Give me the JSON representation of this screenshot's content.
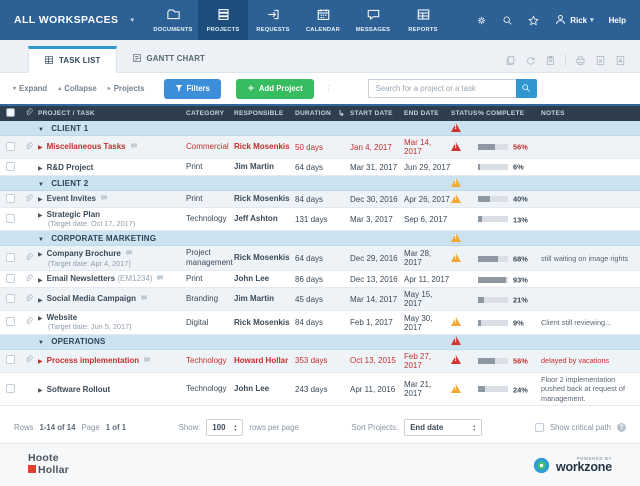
{
  "colors": {
    "navbar": "#2d6195",
    "navbar_active": "#1d4d7c",
    "accent_blue": "#2f96d0",
    "button_blue": "#3d8ed9",
    "button_green": "#36bd5f",
    "table_header": "#2e3e4e",
    "group_row": "#cbe2f1",
    "alert_red": "#cf3430",
    "alert_orange": "#f2a831",
    "overdue_text": "#c42f2a"
  },
  "navbar": {
    "workspace_label": "ALL WORKSPACES",
    "items": [
      {
        "label": "DOCUMENTS",
        "icon": "folder-icon"
      },
      {
        "label": "PROJECTS",
        "icon": "projects-icon"
      },
      {
        "label": "REQUESTS",
        "icon": "requests-icon"
      },
      {
        "label": "CALENDAR",
        "icon": "calendar-icon"
      },
      {
        "label": "MESSAGES",
        "icon": "messages-icon"
      },
      {
        "label": "REPORTS",
        "icon": "reports-icon"
      }
    ],
    "active_item": "PROJECTS",
    "user_name": "Rick",
    "help_label": "Help"
  },
  "tabbar": {
    "tabs": [
      {
        "label": "TASK LIST"
      },
      {
        "label": "GANTT CHART"
      }
    ],
    "active_tab": "TASK LIST",
    "tool_icons": [
      "copy-icon",
      "recycle-icon",
      "clipboard-icon",
      "print-icon",
      "excel-export-icon",
      "pdf-export-icon"
    ]
  },
  "toolbar": {
    "expand_label": "Expand",
    "collapse_label": "Collapse",
    "projects_label": "Projects",
    "filters_label": "Filters",
    "add_project_label": "Add Project",
    "search_placeholder": "Search for a project or a task"
  },
  "table": {
    "columns": [
      "PROJECT / TASK",
      "CATEGORY",
      "RESPONSIBLE",
      "DURATION",
      "START DATE",
      "END DATE",
      "STATUS",
      "% COMPLETE",
      "NOTES"
    ],
    "groups": [
      {
        "name": "CLIENT 1",
        "status": "red",
        "tasks": [
          {
            "name": "Miscellaneous Tasks",
            "code": "",
            "sub": "",
            "clip": true,
            "comment": true,
            "overdue": true,
            "category": "Commercial",
            "responsible": "Rick Mosenkis",
            "duration": "50 days",
            "start": "Jan 4, 2017",
            "end": "Mar 14, 2017",
            "status": "red",
            "complete": 56,
            "notes": "",
            "notes_red": false
          },
          {
            "name": "R&D Project",
            "code": "",
            "sub": "",
            "clip": false,
            "comment": false,
            "overdue": false,
            "category": "Print",
            "responsible": "Jim Martin",
            "duration": "64 days",
            "start": "Mar 31, 2017",
            "end": "Jun 29, 2017",
            "status": "none",
            "complete": 6,
            "notes": "",
            "notes_red": false
          }
        ]
      },
      {
        "name": "CLIENT 2",
        "status": "orange",
        "tasks": [
          {
            "name": "Event Invites",
            "code": "",
            "sub": "",
            "clip": true,
            "comment": true,
            "overdue": false,
            "category": "Print",
            "responsible": "Rick Mosenkis",
            "duration": "84 days",
            "start": "Dec 30, 2016",
            "end": "Apr 26, 2017",
            "status": "orange",
            "complete": 40,
            "notes": "",
            "notes_red": false
          },
          {
            "name": "Strategic Plan",
            "code": "",
            "sub": "(Target date: Oct 17, 2017)",
            "clip": false,
            "comment": false,
            "overdue": false,
            "category": "Technology",
            "responsible": "Jeff Ashton",
            "duration": "131 days",
            "start": "Mar 3, 2017",
            "end": "Sep 6, 2017",
            "status": "none",
            "complete": 13,
            "notes": "",
            "notes_red": false
          }
        ]
      },
      {
        "name": "CORPORATE MARKETING",
        "status": "orange",
        "tasks": [
          {
            "name": "Company Brochure",
            "code": "",
            "sub": "(Target date: Apr 4, 2017)",
            "clip": true,
            "comment": true,
            "overdue": false,
            "category": "Project management",
            "responsible": "Rick Mosenkis",
            "duration": "64 days",
            "start": "Dec 29, 2016",
            "end": "Mar 28, 2017",
            "status": "orange",
            "complete": 68,
            "notes": "still waiting on image rights",
            "notes_red": false
          },
          {
            "name": "Email Newsletters",
            "code": "(EM1234)",
            "sub": "",
            "clip": true,
            "comment": true,
            "overdue": false,
            "category": "Print",
            "responsible": "John Lee",
            "duration": "86 days",
            "start": "Dec 13, 2016",
            "end": "Apr 11, 2017",
            "status": "none",
            "complete": 93,
            "notes": "",
            "notes_red": false
          },
          {
            "name": "Social Media Campaign",
            "code": "",
            "sub": "",
            "clip": true,
            "comment": true,
            "overdue": false,
            "category": "Branding",
            "responsible": "Jim Martin",
            "duration": "45 days",
            "start": "Mar 14, 2017",
            "end": "May 15, 2017",
            "status": "none",
            "complete": 21,
            "notes": "",
            "notes_red": false
          },
          {
            "name": "Website",
            "code": "",
            "sub": "(Target date: Jun 5, 2017)",
            "clip": true,
            "comment": false,
            "overdue": false,
            "category": "Digital",
            "responsible": "Rick Mosenkis",
            "duration": "84 days",
            "start": "Feb 1, 2017",
            "end": "May 30, 2017",
            "status": "orange",
            "complete": 9,
            "notes": "Client still reviewing...",
            "notes_red": false
          }
        ]
      },
      {
        "name": "OPERATIONS",
        "status": "red",
        "tasks": [
          {
            "name": "Process implementation",
            "code": "",
            "sub": "",
            "clip": true,
            "comment": true,
            "overdue": true,
            "category": "Technology",
            "responsible": "Howard Hollar",
            "duration": "353 days",
            "start": "Oct 13, 2015",
            "end": "Feb 27, 2017",
            "status": "red",
            "complete": 56,
            "notes": "delayed by vacations",
            "notes_red": true
          },
          {
            "name": "Software Rollout",
            "code": "",
            "sub": "",
            "clip": false,
            "comment": false,
            "overdue": false,
            "category": "Technology",
            "responsible": "John Lee",
            "duration": "243 days",
            "start": "Apr 11, 2016",
            "end": "Mar 21, 2017",
            "status": "orange",
            "complete": 24,
            "notes": "Floor 2 implementation pushed back at request of management.",
            "notes_red": false
          }
        ]
      }
    ]
  },
  "footer": {
    "rows_label": "Rows",
    "rows_value": "1-14 of 14",
    "page_label": "Page",
    "page_value": "1 of 1",
    "show_label": "Show:",
    "page_size": "100",
    "per_page_label": "rows per page",
    "sort_label": "Sort Projects:",
    "sort_value": "End date",
    "critical_label": "Show critical path"
  },
  "branding": {
    "client_line1": "Hoote",
    "client_line2": "Hollar",
    "powered_by": "POWERED BY",
    "product": "workzone"
  }
}
